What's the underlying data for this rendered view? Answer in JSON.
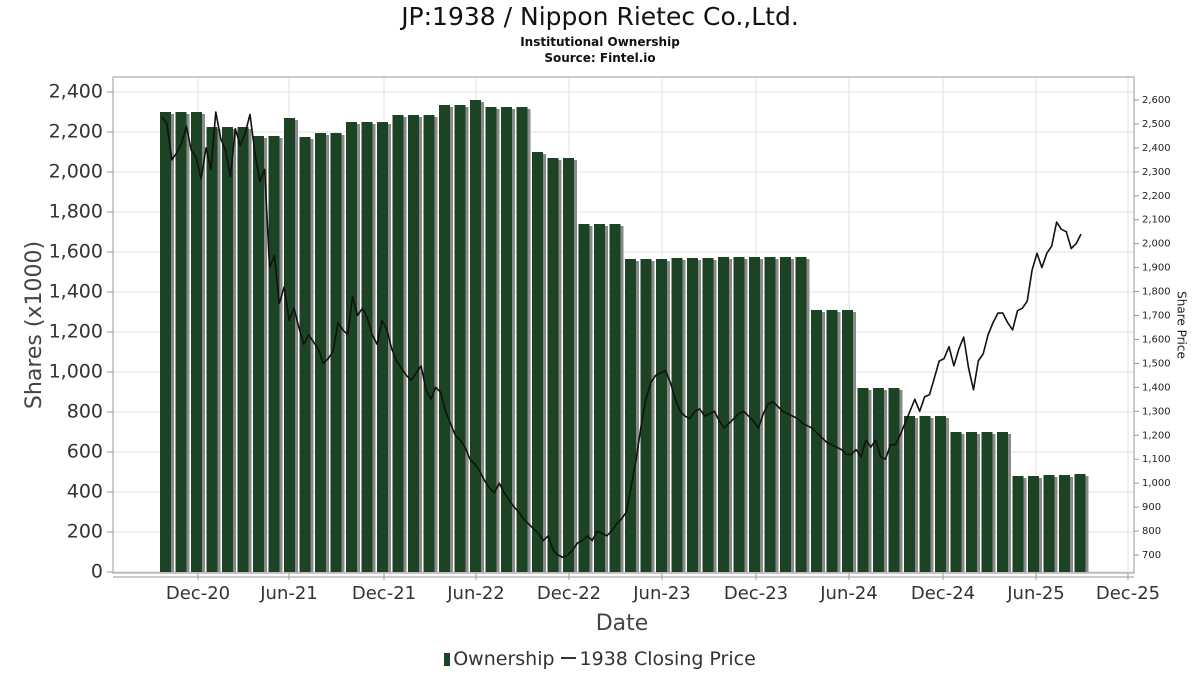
{
  "chart_data": {
    "type": "bar",
    "title": "JP:1938 / Nippon Rietec Co.,Ltd.",
    "subtitle": "Institutional Ownership",
    "source": "Source: Fintel.io",
    "xlabel": "Date",
    "ylabel": "Shares (x1000)",
    "y2label": "Share Price",
    "ylim": [
      0,
      2520
    ],
    "y2lim": [
      630,
      2650
    ],
    "y_ticks": [
      "0",
      "200",
      "400",
      "600",
      "800",
      "1,000",
      "1,200",
      "1,400",
      "1,600",
      "1,800",
      "2,000",
      "2,200",
      "2,400"
    ],
    "y2_ticks": [
      "700",
      "800",
      "900",
      "1,000",
      "1,100",
      "1,200",
      "1,300",
      "1,400",
      "1,500",
      "1,600",
      "1,700",
      "1,800",
      "1,900",
      "2,000",
      "2,100",
      "2,200",
      "2,300",
      "2,400",
      "2,500",
      "2,600"
    ],
    "x_ticks": [
      "Dec-20",
      "Jun-21",
      "Dec-21",
      "Jun-22",
      "Dec-22",
      "Jun-23",
      "Dec-23",
      "Jun-24",
      "Dec-24",
      "Jun-25",
      "Dec-25"
    ],
    "grid": true,
    "legend_position": "bottom",
    "colors": {
      "bars": "#1c4424",
      "bar_shadow": "#8a8a8a",
      "line": "#111111",
      "grid": "#e0e0e0"
    },
    "series": [
      {
        "name": "Ownership",
        "kind": "bar",
        "values": [
          2300,
          2300,
          2300,
          2225,
          2225,
          2225,
          2180,
          2180,
          2270,
          2175,
          2195,
          2195,
          2250,
          2250,
          2250,
          2285,
          2285,
          2285,
          2335,
          2335,
          2360,
          2325,
          2325,
          2325,
          2100,
          2070,
          2070,
          1740,
          1740,
          1740,
          1565,
          1565,
          1565,
          1570,
          1570,
          1570,
          1575,
          1575,
          1575,
          1575,
          1575,
          1575,
          1310,
          1310,
          1310,
          920,
          920,
          920,
          780,
          780,
          780,
          700,
          700,
          700,
          700,
          480,
          480,
          485,
          485,
          490
        ]
      },
      {
        "name": "1938 Closing Price",
        "kind": "line",
        "axis": "right",
        "values": [
          2530,
          2500,
          2350,
          2380,
          2420,
          2490,
          2390,
          2360,
          2270,
          2400,
          2310,
          2550,
          2440,
          2390,
          2280,
          2480,
          2410,
          2460,
          2540,
          2380,
          2260,
          2310,
          1900,
          1950,
          1750,
          1820,
          1680,
          1730,
          1650,
          1580,
          1620,
          1590,
          1560,
          1500,
          1520,
          1550,
          1670,
          1640,
          1620,
          1780,
          1700,
          1730,
          1690,
          1620,
          1580,
          1680,
          1640,
          1560,
          1510,
          1480,
          1450,
          1430,
          1460,
          1490,
          1390,
          1350,
          1400,
          1380,
          1300,
          1250,
          1200,
          1180,
          1150,
          1100,
          1080,
          1050,
          1010,
          980,
          960,
          1000,
          960,
          930,
          900,
          880,
          850,
          830,
          810,
          790,
          760,
          780,
          720,
          700,
          690,
          700,
          720,
          750,
          760,
          780,
          760,
          800,
          790,
          780,
          800,
          830,
          850,
          880,
          990,
          1100,
          1240,
          1350,
          1420,
          1450,
          1460,
          1470,
          1420,
          1350,
          1300,
          1280,
          1270,
          1300,
          1310,
          1280,
          1290,
          1300,
          1260,
          1230,
          1250,
          1270,
          1290,
          1300,
          1280,
          1260,
          1230,
          1290,
          1330,
          1340,
          1320,
          1300,
          1290,
          1280,
          1270,
          1250,
          1240,
          1230,
          1210,
          1190,
          1170,
          1160,
          1150,
          1140,
          1120,
          1120,
          1140,
          1110,
          1180,
          1150,
          1180,
          1110,
          1100,
          1160,
          1160,
          1200,
          1250,
          1300,
          1350,
          1300,
          1360,
          1370,
          1440,
          1510,
          1520,
          1570,
          1490,
          1560,
          1610,
          1480,
          1390,
          1510,
          1540,
          1620,
          1670,
          1710,
          1710,
          1670,
          1640,
          1720,
          1730,
          1760,
          1890,
          1960,
          1900,
          1960,
          1990,
          2090,
          2060,
          2050,
          1980,
          2000,
          2040
        ]
      }
    ]
  }
}
